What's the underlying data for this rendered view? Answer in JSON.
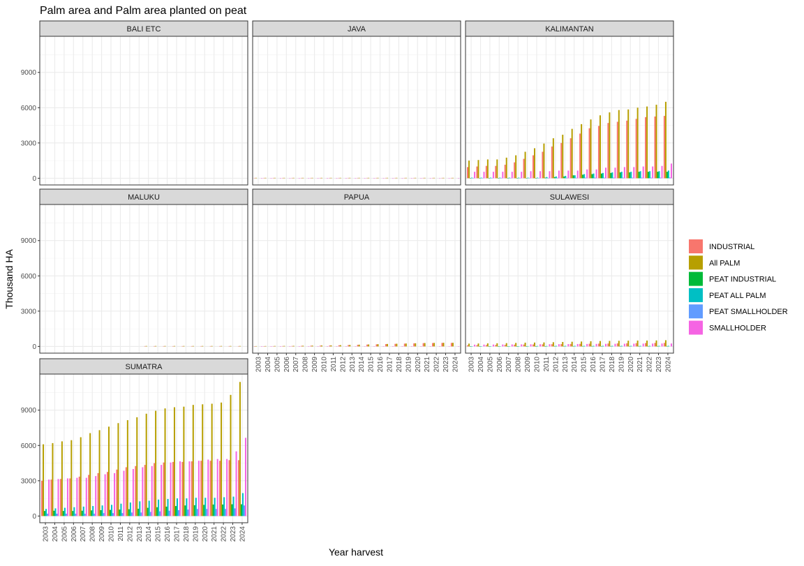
{
  "chart_data": {
    "type": "bar",
    "title": "Palm area and Palm area planted on peat",
    "xlabel": "Year harvest",
    "ylabel": "Thousand HA",
    "ylim": [
      -570,
      12070
    ],
    "yticks": [
      0,
      3000,
      6000,
      9000
    ],
    "grid": true,
    "legend_position": "right",
    "categories": [
      "2003",
      "2004",
      "2005",
      "2006",
      "2007",
      "2008",
      "2009",
      "2010",
      "2011",
      "2012",
      "2013",
      "2014",
      "2015",
      "2016",
      "2017",
      "2018",
      "2019",
      "2020",
      "2021",
      "2022",
      "2023",
      "2024"
    ],
    "series_names": [
      "INDUSTRIAL",
      "All PALM",
      "PEAT INDUSTRIAL",
      "PEAT ALL PALM",
      "PEAT SMALLHOLDER",
      "SMALLHOLDER"
    ],
    "colors": [
      "#F8766D",
      "#B79F00",
      "#00BA38",
      "#00BFC4",
      "#619CFF",
      "#F564E3"
    ],
    "panels": [
      {
        "name": "BALI ETC",
        "series": {}
      },
      {
        "name": "JAVA",
        "series": {
          "INDUSTRIAL": [
            30,
            30,
            30,
            30,
            30,
            30,
            30,
            30,
            30,
            30,
            30,
            30,
            30,
            30,
            30,
            30,
            30,
            30,
            30,
            30,
            30,
            30
          ],
          "All PALM": [
            35,
            35,
            35,
            35,
            35,
            35,
            35,
            35,
            35,
            35,
            35,
            35,
            35,
            35,
            35,
            35,
            35,
            35,
            35,
            35,
            35,
            35
          ],
          "SMALLHOLDER": [
            5,
            5,
            5,
            5,
            5,
            5,
            5,
            5,
            5,
            5,
            5,
            5,
            5,
            5,
            5,
            5,
            5,
            5,
            5,
            5,
            5,
            5
          ]
        }
      },
      {
        "name": "KALIMANTAN",
        "series": {
          "INDUSTRIAL": [
            950,
            1000,
            1050,
            1050,
            1150,
            1350,
            1650,
            1950,
            2250,
            2700,
            3000,
            3400,
            3800,
            4250,
            4450,
            4700,
            4800,
            4900,
            5050,
            5200,
            5250,
            5300
          ],
          "All PALM": [
            1500,
            1550,
            1600,
            1600,
            1750,
            1950,
            2250,
            2550,
            2950,
            3400,
            3700,
            4200,
            4600,
            5000,
            5350,
            5600,
            5800,
            5850,
            6000,
            6100,
            6250,
            6500
          ],
          "PEAT INDUSTRIAL": [
            0,
            0,
            0,
            0,
            0,
            0,
            0,
            0,
            50,
            100,
            150,
            250,
            300,
            350,
            400,
            450,
            500,
            500,
            550,
            550,
            550,
            550
          ],
          "PEAT ALL PALM": [
            50,
            50,
            50,
            50,
            50,
            50,
            50,
            50,
            100,
            150,
            200,
            250,
            350,
            400,
            450,
            500,
            550,
            550,
            600,
            600,
            600,
            650
          ],
          "PEAT SMALLHOLDER": [
            30,
            30,
            30,
            30,
            30,
            30,
            30,
            30,
            30,
            40,
            40,
            40,
            50,
            50,
            50,
            50,
            50,
            50,
            50,
            50,
            50,
            60
          ],
          "SMALLHOLDER": [
            550,
            550,
            550,
            550,
            550,
            550,
            600,
            600,
            600,
            650,
            650,
            650,
            750,
            750,
            900,
            900,
            950,
            950,
            1000,
            1000,
            1050,
            1250
          ]
        }
      },
      {
        "name": "MALUKU",
        "series": {
          "INDUSTRIAL": [
            null,
            null,
            null,
            null,
            null,
            null,
            null,
            null,
            null,
            null,
            null,
            30,
            30,
            30,
            30,
            30,
            30,
            30,
            30,
            30,
            30,
            30
          ],
          "All PALM": [
            null,
            null,
            null,
            null,
            null,
            null,
            null,
            null,
            null,
            null,
            null,
            40,
            40,
            40,
            40,
            40,
            40,
            40,
            40,
            40,
            40,
            40
          ]
        }
      },
      {
        "name": "PAPUA",
        "series": {
          "INDUSTRIAL": [
            20,
            25,
            30,
            35,
            40,
            50,
            60,
            70,
            80,
            100,
            120,
            140,
            160,
            180,
            200,
            220,
            240,
            260,
            280,
            290,
            300,
            300
          ],
          "All PALM": [
            30,
            35,
            40,
            45,
            50,
            60,
            70,
            80,
            90,
            110,
            130,
            150,
            170,
            190,
            210,
            230,
            250,
            270,
            290,
            300,
            310,
            310
          ],
          "SMALLHOLDER": [
            10,
            10,
            10,
            10,
            10,
            10,
            10,
            10,
            10,
            10,
            10,
            10,
            10,
            10,
            10,
            10,
            10,
            10,
            10,
            10,
            10,
            10
          ]
        }
      },
      {
        "name": "SULAWESI",
        "series": {
          "INDUSTRIAL": [
            100,
            110,
            120,
            130,
            140,
            150,
            160,
            170,
            180,
            190,
            200,
            210,
            220,
            230,
            240,
            250,
            260,
            270,
            280,
            290,
            300,
            300
          ],
          "All PALM": [
            240,
            250,
            260,
            270,
            280,
            300,
            320,
            330,
            340,
            360,
            380,
            400,
            420,
            440,
            460,
            470,
            480,
            490,
            500,
            500,
            510,
            530
          ],
          "PEAT INDUSTRIAL": [
            0,
            0,
            0,
            0,
            0,
            0,
            0,
            20,
            20,
            30,
            30,
            30,
            30,
            30,
            30,
            30,
            30,
            30,
            30,
            30,
            30,
            30
          ],
          "PEAT ALL PALM": [
            0,
            0,
            0,
            0,
            0,
            20,
            30,
            40,
            40,
            50,
            50,
            50,
            50,
            50,
            50,
            50,
            50,
            50,
            50,
            50,
            50,
            50
          ],
          "SMALLHOLDER": [
            150,
            155,
            160,
            165,
            170,
            175,
            180,
            185,
            190,
            195,
            200,
            205,
            210,
            215,
            220,
            225,
            230,
            235,
            240,
            245,
            250,
            250
          ]
        }
      },
      {
        "name": "SUMATRA",
        "series": {
          "INDUSTRIAL": [
            3000,
            3100,
            3150,
            3200,
            3350,
            3500,
            3650,
            3750,
            3950,
            4150,
            4250,
            4350,
            4500,
            4550,
            4600,
            4600,
            4650,
            4700,
            4700,
            4700,
            4750,
            4750
          ],
          "All PALM": [
            6100,
            6200,
            6350,
            6450,
            6700,
            7050,
            7300,
            7600,
            7900,
            8150,
            8400,
            8700,
            8950,
            9150,
            9250,
            9300,
            9450,
            9500,
            9550,
            9650,
            10300,
            11400
          ],
          "PEAT INDUSTRIAL": [
            430,
            450,
            430,
            430,
            450,
            480,
            500,
            520,
            550,
            580,
            620,
            700,
            750,
            800,
            850,
            900,
            920,
            950,
            980,
            980,
            1000,
            1000
          ],
          "PEAT ALL PALM": [
            600,
            650,
            700,
            750,
            800,
            850,
            900,
            950,
            1050,
            1150,
            1250,
            1300,
            1400,
            1450,
            1500,
            1500,
            1550,
            1550,
            1550,
            1600,
            1650,
            1950
          ],
          "PEAT SMALLHOLDER": [
            200,
            200,
            200,
            200,
            200,
            200,
            250,
            250,
            250,
            300,
            300,
            350,
            400,
            450,
            500,
            550,
            600,
            600,
            600,
            600,
            650,
            900
          ],
          "SMALLHOLDER": [
            3100,
            3150,
            3200,
            3250,
            3250,
            3400,
            3550,
            3650,
            3850,
            4000,
            4150,
            4250,
            4350,
            4550,
            4650,
            4650,
            4700,
            4800,
            4850,
            4850,
            5500,
            6650
          ]
        }
      }
    ]
  }
}
